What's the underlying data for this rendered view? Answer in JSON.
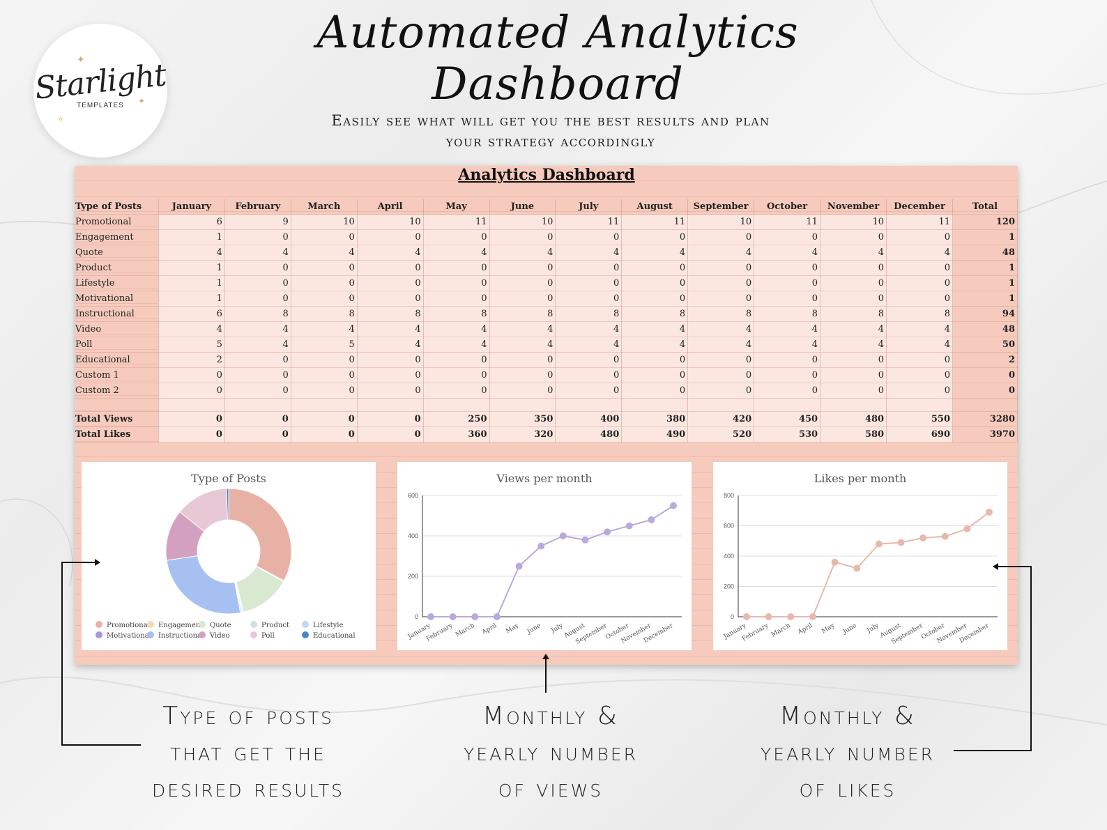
{
  "header": {
    "title": "Automated Analytics Dashboard",
    "subtitle_line1": "Easily see what will get you the best results and plan",
    "subtitle_line2": "your strategy accordingly"
  },
  "logo": {
    "word": "Starlight",
    "sub": "TEMPLATES"
  },
  "sheet": {
    "title": "Analytics Dashboard",
    "row_header": "Type of Posts",
    "months": [
      "January",
      "February",
      "March",
      "April",
      "May",
      "June",
      "July",
      "August",
      "September",
      "October",
      "November",
      "December"
    ],
    "total_label": "Total",
    "rows": [
      {
        "label": "Promotional",
        "values": [
          6,
          9,
          10,
          10,
          11,
          10,
          11,
          11,
          10,
          11,
          10,
          11
        ],
        "total": 120
      },
      {
        "label": "Engagement",
        "values": [
          1,
          0,
          0,
          0,
          0,
          0,
          0,
          0,
          0,
          0,
          0,
          0
        ],
        "total": 1
      },
      {
        "label": "Quote",
        "values": [
          4,
          4,
          4,
          4,
          4,
          4,
          4,
          4,
          4,
          4,
          4,
          4
        ],
        "total": 48
      },
      {
        "label": "Product",
        "values": [
          1,
          0,
          0,
          0,
          0,
          0,
          0,
          0,
          0,
          0,
          0,
          0
        ],
        "total": 1
      },
      {
        "label": "Lifestyle",
        "values": [
          1,
          0,
          0,
          0,
          0,
          0,
          0,
          0,
          0,
          0,
          0,
          0
        ],
        "total": 1
      },
      {
        "label": "Motivational",
        "values": [
          1,
          0,
          0,
          0,
          0,
          0,
          0,
          0,
          0,
          0,
          0,
          0
        ],
        "total": 1
      },
      {
        "label": "Instructional",
        "values": [
          6,
          8,
          8,
          8,
          8,
          8,
          8,
          8,
          8,
          8,
          8,
          8
        ],
        "total": 94
      },
      {
        "label": "Video",
        "values": [
          4,
          4,
          4,
          4,
          4,
          4,
          4,
          4,
          4,
          4,
          4,
          4
        ],
        "total": 48
      },
      {
        "label": "Poll",
        "values": [
          5,
          4,
          5,
          4,
          4,
          4,
          4,
          4,
          4,
          4,
          4,
          4
        ],
        "total": 50
      },
      {
        "label": "Educational",
        "values": [
          2,
          0,
          0,
          0,
          0,
          0,
          0,
          0,
          0,
          0,
          0,
          0
        ],
        "total": 2
      },
      {
        "label": "Custom 1",
        "values": [
          0,
          0,
          0,
          0,
          0,
          0,
          0,
          0,
          0,
          0,
          0,
          0
        ],
        "total": 0
      },
      {
        "label": "Custom 2",
        "values": [
          0,
          0,
          0,
          0,
          0,
          0,
          0,
          0,
          0,
          0,
          0,
          0
        ],
        "total": 0
      }
    ],
    "summary_rows": [
      {
        "label": "Total Views",
        "values": [
          0,
          0,
          0,
          0,
          250,
          350,
          400,
          380,
          420,
          450,
          480,
          550
        ],
        "total": 3280
      },
      {
        "label": "Total Likes",
        "values": [
          0,
          0,
          0,
          0,
          360,
          320,
          480,
          490,
          520,
          530,
          580,
          690
        ],
        "total": 3970
      }
    ]
  },
  "chart_data": [
    {
      "type": "pie",
      "title": "Type of Posts",
      "categories": [
        "Promotional",
        "Engagement",
        "Quote",
        "Product",
        "Lifestyle",
        "Motivational",
        "Instructional",
        "Video",
        "Poll",
        "Educational"
      ],
      "values": [
        120,
        1,
        48,
        1,
        1,
        1,
        94,
        48,
        50,
        2
      ],
      "colors": [
        "#e8b1a6",
        "#f6d9b6",
        "#d9e8d0",
        "#d3dde6",
        "#c2d6f2",
        "#a99ad6",
        "#a6c0f2",
        "#d4a0c0",
        "#e9c8d6",
        "#4a86c9"
      ],
      "legend": "bottom"
    },
    {
      "type": "line",
      "title": "Views per month",
      "categories": [
        "January",
        "February",
        "March",
        "April",
        "May",
        "June",
        "July",
        "August",
        "September",
        "October",
        "November",
        "December"
      ],
      "values": [
        0,
        0,
        0,
        0,
        250,
        350,
        400,
        380,
        420,
        450,
        480,
        550
      ],
      "ylim": [
        0,
        600
      ],
      "yticks": [
        0,
        200,
        400,
        600
      ],
      "color": "#b9aade",
      "grid": true
    },
    {
      "type": "line",
      "title": "Likes per month",
      "categories": [
        "January",
        "February",
        "March",
        "April",
        "May",
        "June",
        "July",
        "August",
        "September",
        "October",
        "November",
        "December"
      ],
      "values": [
        0,
        0,
        0,
        0,
        360,
        320,
        480,
        490,
        520,
        530,
        580,
        690
      ],
      "ylim": [
        0,
        800
      ],
      "yticks": [
        0,
        200,
        400,
        600,
        800
      ],
      "color": "#e8b9ab",
      "grid": true
    }
  ],
  "captions": {
    "left": [
      "Type of posts",
      "that get the",
      "desired results"
    ],
    "middle": [
      "Monthly &",
      "yearly number",
      "of views"
    ],
    "right": [
      "Monthly &",
      "yearly number",
      "of likes"
    ]
  }
}
